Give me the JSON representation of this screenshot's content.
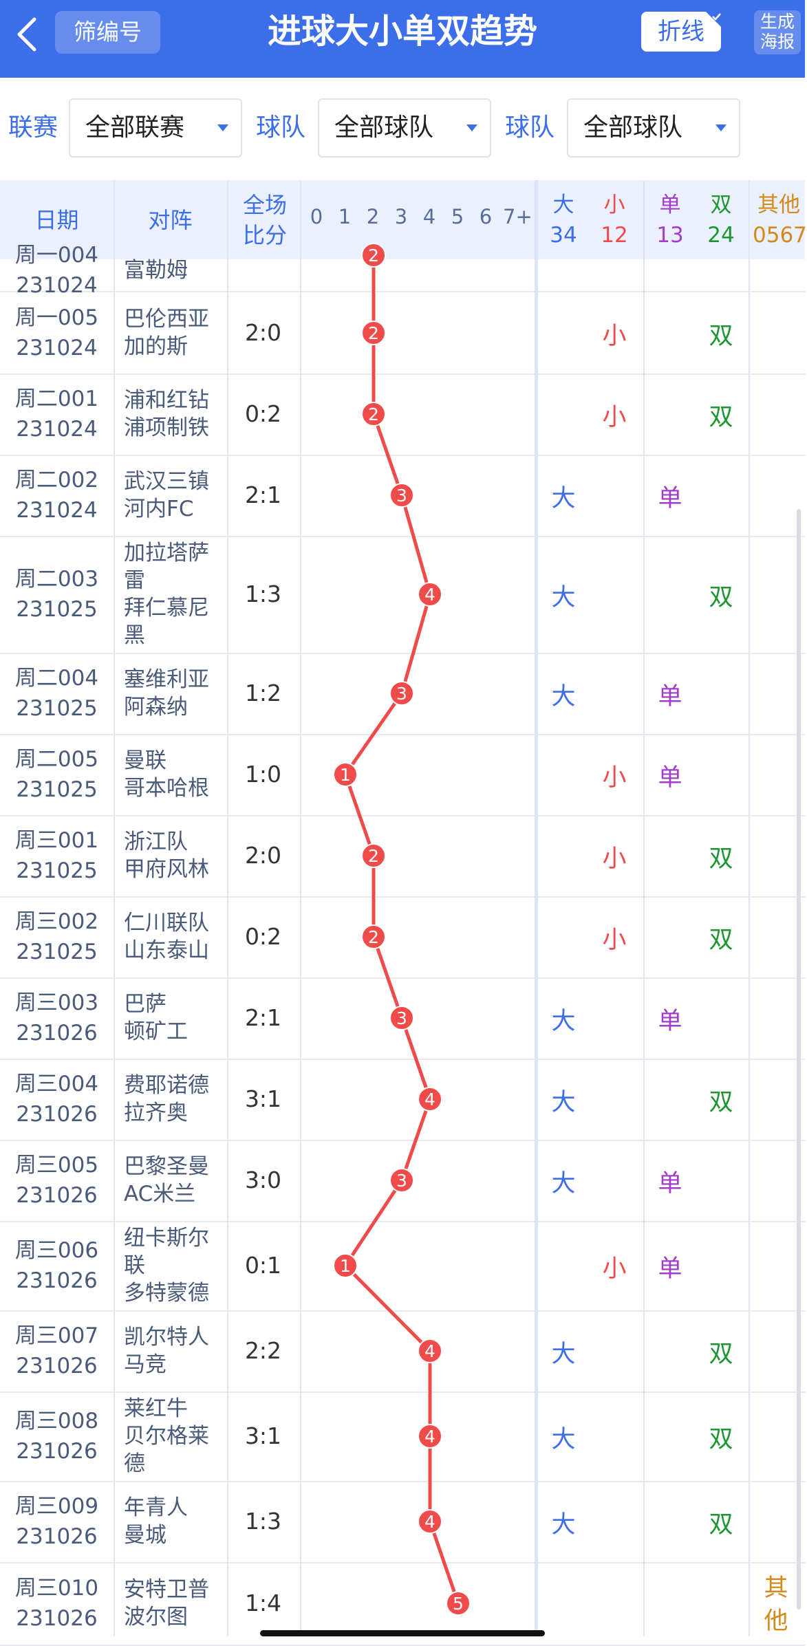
{
  "topbar": {
    "filter_chip": "筛编号",
    "title": "进球大小单双趋势",
    "line_button": "折线",
    "poster_button": "生成海报"
  },
  "filters": [
    {
      "label": "联赛",
      "value": "全部联赛"
    },
    {
      "label": "球队",
      "value": "全部球队"
    },
    {
      "label": "球队",
      "value": "全部球队"
    }
  ],
  "header": {
    "date": "日期",
    "match": "对阵",
    "score": "全场比分",
    "ticks": [
      "0",
      "1",
      "2",
      "3",
      "4",
      "5",
      "6",
      "7+"
    ],
    "big": {
      "label": "大",
      "count": "34"
    },
    "small": {
      "label": "小",
      "count": "12"
    },
    "odd": {
      "label": "单",
      "count": "13"
    },
    "even": {
      "label": "双",
      "count": "24"
    },
    "other": {
      "label": "其他",
      "count": "0567"
    }
  },
  "colors": {
    "primary": "#3b6ee8",
    "line": "#f04b4b",
    "big": "#3b6ee8",
    "small": "#f04b4b",
    "odd": "#a33cc8",
    "even": "#1e9630",
    "other": "#d48a1a"
  },
  "rows": [
    {
      "day": "周一004",
      "date": "231024",
      "home": "",
      "away": "富勒姆",
      "score": "",
      "goals": 2,
      "size": "",
      "parity": ""
    },
    {
      "day": "周一005",
      "date": "231024",
      "home": "巴伦西亚",
      "away": "加的斯",
      "score": "2:0",
      "goals": 2,
      "size": "小",
      "parity": "双"
    },
    {
      "day": "周二001",
      "date": "231024",
      "home": "浦和红钻",
      "away": "浦项制铁",
      "score": "0:2",
      "goals": 2,
      "size": "小",
      "parity": "双"
    },
    {
      "day": "周二002",
      "date": "231024",
      "home": "武汉三镇",
      "away": "河内FC",
      "score": "2:1",
      "goals": 3,
      "size": "大",
      "parity": "单"
    },
    {
      "day": "周二003",
      "date": "231025",
      "home": "加拉塔萨雷",
      "away": "拜仁慕尼黑",
      "score": "1:3",
      "goals": 4,
      "size": "大",
      "parity": "双"
    },
    {
      "day": "周二004",
      "date": "231025",
      "home": "塞维利亚",
      "away": "阿森纳",
      "score": "1:2",
      "goals": 3,
      "size": "大",
      "parity": "单"
    },
    {
      "day": "周二005",
      "date": "231025",
      "home": "曼联",
      "away": "哥本哈根",
      "score": "1:0",
      "goals": 1,
      "size": "小",
      "parity": "单"
    },
    {
      "day": "周三001",
      "date": "231025",
      "home": "浙江队",
      "away": "甲府风林",
      "score": "2:0",
      "goals": 2,
      "size": "小",
      "parity": "双"
    },
    {
      "day": "周三002",
      "date": "231025",
      "home": "仁川联队",
      "away": "山东泰山",
      "score": "0:2",
      "goals": 2,
      "size": "小",
      "parity": "双"
    },
    {
      "day": "周三003",
      "date": "231026",
      "home": "巴萨",
      "away": "顿矿工",
      "score": "2:1",
      "goals": 3,
      "size": "大",
      "parity": "单"
    },
    {
      "day": "周三004",
      "date": "231026",
      "home": "费耶诺德",
      "away": "拉齐奥",
      "score": "3:1",
      "goals": 4,
      "size": "大",
      "parity": "双"
    },
    {
      "day": "周三005",
      "date": "231026",
      "home": "巴黎圣曼",
      "away": "AC米兰",
      "score": "3:0",
      "goals": 3,
      "size": "大",
      "parity": "单"
    },
    {
      "day": "周三006",
      "date": "231026",
      "home": "纽卡斯尔联",
      "away": "多特蒙德",
      "score": "0:1",
      "goals": 1,
      "size": "小",
      "parity": "单"
    },
    {
      "day": "周三007",
      "date": "231026",
      "home": "凯尔特人",
      "away": "马竞",
      "score": "2:2",
      "goals": 4,
      "size": "大",
      "parity": "双"
    },
    {
      "day": "周三008",
      "date": "231026",
      "home": "莱红牛",
      "away": "贝尔格莱德",
      "score": "3:1",
      "goals": 4,
      "size": "大",
      "parity": "双"
    },
    {
      "day": "周三009",
      "date": "231026",
      "home": "年青人",
      "away": "曼城",
      "score": "1:3",
      "goals": 4,
      "size": "大",
      "parity": "双"
    },
    {
      "day": "周三010",
      "date": "231026",
      "home": "安特卫普",
      "away": "波尔图",
      "score": "1:4",
      "goals": 5,
      "size": "",
      "parity": "",
      "other": "其他"
    }
  ]
}
